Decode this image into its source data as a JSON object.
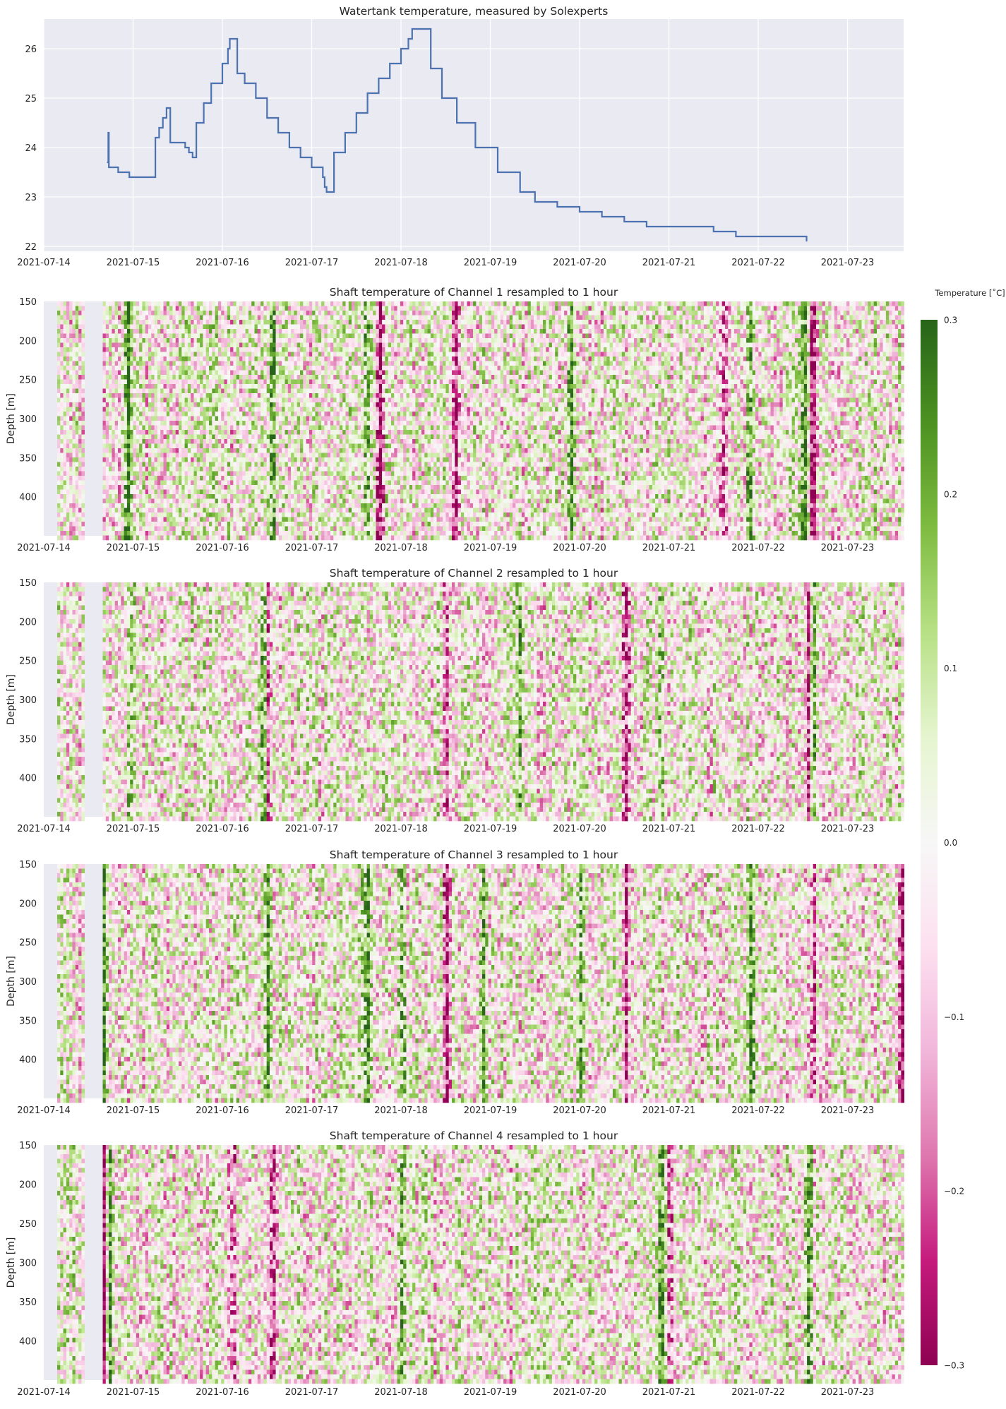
{
  "chart_data": [
    {
      "type": "line",
      "title": "Watertank temperature, measured by Solexperts",
      "xlabel": "",
      "ylabel": "",
      "x_ticks": [
        "2021-07-14",
        "2021-07-15",
        "2021-07-16",
        "2021-07-17",
        "2021-07-18",
        "2021-07-19",
        "2021-07-20",
        "2021-07-21",
        "2021-07-22",
        "2021-07-23"
      ],
      "y_ticks": [
        22,
        23,
        24,
        25,
        26
      ],
      "xlim": [
        "2021-07-14",
        "2021-07-23 16:00"
      ],
      "ylim": [
        21.9,
        26.6
      ],
      "grid": true,
      "line_color": "#4c72b0",
      "series": [
        {
          "x": [
            "2021-07-14 17:00",
            "2021-07-14 17:20",
            "2021-07-14 17:30",
            "2021-07-14 18:00",
            "2021-07-14 20:00",
            "2021-07-14 23:00",
            "2021-07-15 02:00",
            "2021-07-15 05:00",
            "2021-07-15 06:00",
            "2021-07-15 07:00",
            "2021-07-15 08:00",
            "2021-07-15 09:00",
            "2021-07-15 10:00",
            "2021-07-15 12:00",
            "2021-07-15 14:00",
            "2021-07-15 15:00",
            "2021-07-15 16:00",
            "2021-07-15 17:00",
            "2021-07-15 19:00",
            "2021-07-15 21:00",
            "2021-07-16 00:00",
            "2021-07-16 01:30",
            "2021-07-16 02:00",
            "2021-07-16 04:00",
            "2021-07-16 06:00",
            "2021-07-16 09:00",
            "2021-07-16 12:00",
            "2021-07-16 15:00",
            "2021-07-16 18:00",
            "2021-07-16 21:00",
            "2021-07-17 00:00",
            "2021-07-17 03:00",
            "2021-07-17 03:30",
            "2021-07-17 04:00",
            "2021-07-17 06:00",
            "2021-07-17 09:00",
            "2021-07-17 12:00",
            "2021-07-17 15:00",
            "2021-07-17 18:00",
            "2021-07-17 21:00",
            "2021-07-18 00:00",
            "2021-07-18 02:00",
            "2021-07-18 03:00",
            "2021-07-18 05:00",
            "2021-07-18 08:00",
            "2021-07-18 11:00",
            "2021-07-18 15:00",
            "2021-07-18 20:00",
            "2021-07-19 02:00",
            "2021-07-19 08:00",
            "2021-07-19 12:00",
            "2021-07-19 18:00",
            "2021-07-20 00:00",
            "2021-07-20 06:00",
            "2021-07-20 12:00",
            "2021-07-20 18:00",
            "2021-07-21 00:00",
            "2021-07-21 06:00",
            "2021-07-21 12:00",
            "2021-07-21 18:00",
            "2021-07-22 00:00",
            "2021-07-22 06:00",
            "2021-07-22 12:00",
            "2021-07-22 13:00"
          ],
          "y": [
            23.7,
            24.3,
            23.6,
            23.6,
            23.5,
            23.4,
            23.4,
            23.4,
            24.2,
            24.4,
            24.6,
            24.8,
            24.1,
            24.1,
            24.0,
            23.9,
            23.8,
            24.5,
            24.9,
            25.3,
            25.7,
            26.0,
            26.2,
            25.5,
            25.3,
            25.0,
            24.6,
            24.3,
            24.0,
            23.8,
            23.6,
            23.4,
            23.2,
            23.1,
            23.9,
            24.3,
            24.7,
            25.1,
            25.4,
            25.7,
            26.0,
            26.2,
            26.4,
            26.4,
            25.6,
            25.0,
            24.5,
            24.0,
            23.5,
            23.1,
            22.9,
            22.8,
            22.7,
            22.6,
            22.5,
            22.4,
            22.4,
            22.4,
            22.3,
            22.2,
            22.2,
            22.2,
            22.2,
            22.1
          ]
        }
      ]
    },
    {
      "type": "heatmap",
      "title": "Shaft temperature of Channel 1 resampled to 1 hour",
      "xlabel": "",
      "ylabel": "Depth [m]",
      "x_ticks": [
        "2021-07-14",
        "2021-07-15",
        "2021-07-16",
        "2021-07-17",
        "2021-07-18",
        "2021-07-19",
        "2021-07-20",
        "2021-07-21",
        "2021-07-22",
        "2021-07-23"
      ],
      "y_ticks": [
        150,
        200,
        250,
        300,
        350,
        400
      ],
      "ylim": [
        450,
        150
      ],
      "clim": [
        -0.3,
        0.3
      ],
      "colormap": "PiYG",
      "strong_columns": [
        {
          "day": 0.93,
          "value": 0.25
        },
        {
          "day": 2.55,
          "value": 0.25
        },
        {
          "day": 3.6,
          "value": 0.22
        },
        {
          "day": 3.75,
          "value": -0.28
        },
        {
          "day": 4.6,
          "value": -0.25
        },
        {
          "day": 5.9,
          "value": 0.2
        },
        {
          "day": 7.6,
          "value": -0.22
        },
        {
          "day": 7.9,
          "value": 0.2
        },
        {
          "day": 8.5,
          "value": 0.28
        },
        {
          "day": 8.6,
          "value": -0.3
        }
      ]
    },
    {
      "type": "heatmap",
      "title": "Shaft temperature of Channel 2 resampled to 1 hour",
      "xlabel": "",
      "ylabel": "Depth [m]",
      "x_ticks": [
        "2021-07-14",
        "2021-07-15",
        "2021-07-16",
        "2021-07-17",
        "2021-07-18",
        "2021-07-19",
        "2021-07-20",
        "2021-07-21",
        "2021-07-22",
        "2021-07-23"
      ],
      "y_ticks": [
        150,
        200,
        250,
        300,
        350,
        400
      ],
      "ylim": [
        450,
        150
      ],
      "clim": [
        -0.3,
        0.3
      ],
      "colormap": "PiYG",
      "strong_columns": [
        {
          "day": 0.95,
          "value": 0.18
        },
        {
          "day": 2.45,
          "value": 0.22
        },
        {
          "day": 2.5,
          "value": -0.2
        },
        {
          "day": 4.5,
          "value": -0.2
        },
        {
          "day": 5.3,
          "value": 0.18
        },
        {
          "day": 6.5,
          "value": -0.22
        },
        {
          "day": 6.9,
          "value": 0.2
        },
        {
          "day": 8.55,
          "value": -0.28
        },
        {
          "day": 8.6,
          "value": 0.2
        }
      ]
    },
    {
      "type": "heatmap",
      "title": "Shaft temperature of Channel 3 resampled to 1 hour",
      "xlabel": "",
      "ylabel": "Depth [m]",
      "x_ticks": [
        "2021-07-14",
        "2021-07-15",
        "2021-07-16",
        "2021-07-17",
        "2021-07-18",
        "2021-07-19",
        "2021-07-20",
        "2021-07-21",
        "2021-07-22",
        "2021-07-23"
      ],
      "y_ticks": [
        150,
        200,
        250,
        300,
        350,
        400
      ],
      "ylim": [
        450,
        150
      ],
      "clim": [
        -0.3,
        0.3
      ],
      "colormap": "PiYG",
      "strong_columns": [
        {
          "day": 0.66,
          "value": 0.3
        },
        {
          "day": 2.5,
          "value": 0.25
        },
        {
          "day": 3.6,
          "value": 0.28
        },
        {
          "day": 4.0,
          "value": 0.2
        },
        {
          "day": 4.5,
          "value": -0.28
        },
        {
          "day": 4.9,
          "value": 0.25
        },
        {
          "day": 6.0,
          "value": 0.22
        },
        {
          "day": 6.5,
          "value": -0.22
        },
        {
          "day": 7.9,
          "value": 0.25
        },
        {
          "day": 8.6,
          "value": -0.22
        },
        {
          "day": 9.6,
          "value": -0.28
        }
      ]
    },
    {
      "type": "heatmap",
      "title": "Shaft temperature of Channel 4 resampled to 1 hour",
      "xlabel": "",
      "ylabel": "Depth [m]",
      "x_ticks": [
        "2021-07-14",
        "2021-07-15",
        "2021-07-16",
        "2021-07-17",
        "2021-07-18",
        "2021-07-19",
        "2021-07-20",
        "2021-07-21",
        "2021-07-22",
        "2021-07-23"
      ],
      "y_ticks": [
        150,
        200,
        250,
        300,
        350,
        400
      ],
      "ylim": [
        450,
        150
      ],
      "clim": [
        -0.3,
        0.3
      ],
      "colormap": "PiYG",
      "strong_columns": [
        {
          "day": 0.66,
          "value": -0.3
        },
        {
          "day": 0.72,
          "value": 0.25
        },
        {
          "day": 2.1,
          "value": -0.22
        },
        {
          "day": 2.55,
          "value": -0.28
        },
        {
          "day": 4.0,
          "value": 0.2
        },
        {
          "day": 6.9,
          "value": 0.25
        },
        {
          "day": 7.0,
          "value": -0.2
        },
        {
          "day": 8.55,
          "value": 0.3
        }
      ]
    }
  ],
  "colorbar": {
    "label": "Temperature [˚C]",
    "ticks": [
      0.3,
      0.2,
      0.1,
      0.0,
      -0.1,
      -0.2,
      -0.3
    ],
    "tick_labels": [
      "0.3",
      "0.2",
      "0.1",
      "0.0",
      "−0.1",
      "−0.2",
      "−0.3"
    ],
    "vmin": -0.3,
    "vmax": 0.3
  }
}
